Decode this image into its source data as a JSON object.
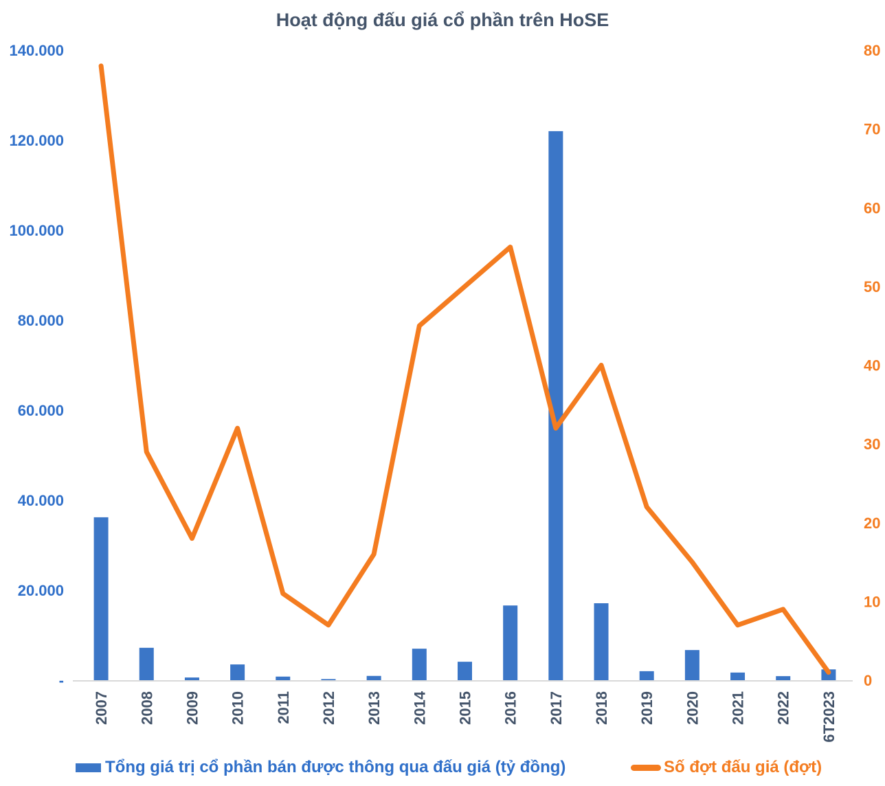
{
  "colors": {
    "bar_blue": "#3B76C7",
    "line_orange": "#F47C20",
    "title_slate": "#44546A",
    "axis_left_blue": "#2F6FC9",
    "axis_right_orange": "#F47C20",
    "baseline_gray": "#D9D9D9"
  },
  "legend": {
    "bar_label": "Tổng giá trị cổ phần bán được thông qua đấu giá (tỷ đồng)",
    "line_label": "Số đợt đấu giá (đợt)"
  },
  "chart_data": {
    "type": "combo",
    "title": "Hoạt động đấu giá cổ phần trên HoSE",
    "categories": [
      "2007",
      "2008",
      "2009",
      "2010",
      "2011",
      "2012",
      "2013",
      "2014",
      "2015",
      "2016",
      "2017",
      "2018",
      "2019",
      "2020",
      "2021",
      "2022",
      "6T2023"
    ],
    "series": [
      {
        "name": "Tổng giá trị cổ phần bán được thông qua đấu giá (tỷ đồng)",
        "type": "bar",
        "axis": "left",
        "values": [
          36200,
          7200,
          600,
          3500,
          800,
          250,
          950,
          7000,
          4100,
          16600,
          122000,
          17100,
          2000,
          6700,
          1700,
          900,
          2400
        ]
      },
      {
        "name": "Số đợt đấu giá (đợt)",
        "type": "line",
        "axis": "right",
        "values": [
          78,
          29,
          18,
          32,
          11,
          7,
          16,
          45,
          50,
          55,
          32,
          40,
          22,
          15,
          7,
          9,
          1
        ]
      }
    ],
    "left_axis": {
      "min": 0,
      "max": 140000,
      "step": 20000,
      "tick_labels": [
        "-",
        "20.000",
        "40.000",
        "60.000",
        "80.000",
        "100.000",
        "120.000",
        "140.000"
      ]
    },
    "right_axis": {
      "min": 0,
      "max": 80,
      "step": 10,
      "tick_labels": [
        "0",
        "10",
        "20",
        "30",
        "40",
        "50",
        "60",
        "70",
        "80"
      ]
    },
    "grid": false,
    "legend_position": "bottom"
  }
}
